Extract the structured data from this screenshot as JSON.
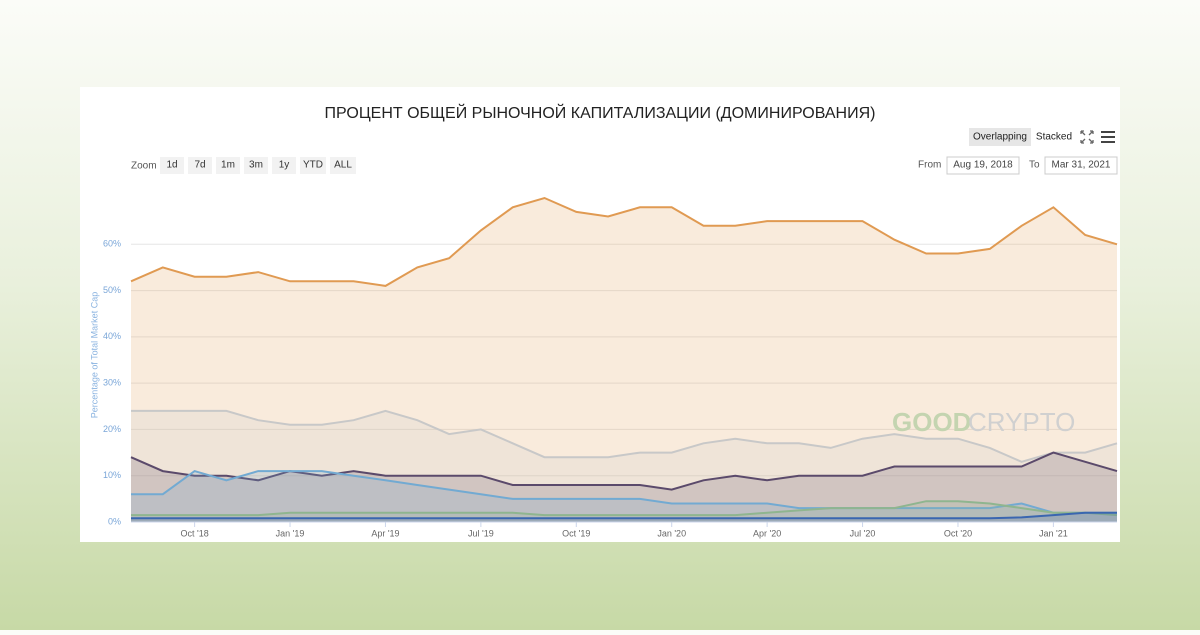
{
  "chart_data": {
    "type": "area",
    "title": "ПРОЦЕНТ ОБЩЕЙ РЫНОЧНОЙ КАПИТАЛИЗАЦИИ (ДОМИНИРОВАНИЯ)",
    "y_label": "Percentage of Total Market Cap",
    "x": [
      "2018-08",
      "2018-09",
      "2018-10",
      "2018-11",
      "2018-12",
      "2019-01",
      "2019-02",
      "2019-03",
      "2019-04",
      "2019-05",
      "2019-06",
      "2019-07",
      "2019-08",
      "2019-09",
      "2019-10",
      "2019-11",
      "2019-12",
      "2020-01",
      "2020-02",
      "2020-03",
      "2020-04",
      "2020-05",
      "2020-06",
      "2020-07",
      "2020-08",
      "2020-09",
      "2020-10",
      "2020-11",
      "2020-12",
      "2021-01",
      "2021-02",
      "2021-03"
    ],
    "xlim": [
      "2018-08",
      "2021-03"
    ],
    "xticks": [
      {
        "value": "2018-10",
        "label": "Oct '18"
      },
      {
        "value": "2019-01",
        "label": "Jan '19"
      },
      {
        "value": "2019-04",
        "label": "Apr '19"
      },
      {
        "value": "2019-07",
        "label": "Jul '19"
      },
      {
        "value": "2019-10",
        "label": "Oct '19"
      },
      {
        "value": "2020-01",
        "label": "Jan '20"
      },
      {
        "value": "2020-04",
        "label": "Apr '20"
      },
      {
        "value": "2020-07",
        "label": "Jul '20"
      },
      {
        "value": "2020-10",
        "label": "Oct '20"
      },
      {
        "value": "2021-01",
        "label": "Jan '21"
      }
    ],
    "ylim": [
      0,
      70
    ],
    "yticks": [
      {
        "value": 0,
        "label": "0%"
      },
      {
        "value": 10,
        "label": "10%"
      },
      {
        "value": 20,
        "label": "20%"
      },
      {
        "value": 30,
        "label": "30%"
      },
      {
        "value": 40,
        "label": "40%"
      },
      {
        "value": 50,
        "label": "50%"
      },
      {
        "value": 60,
        "label": "60%"
      }
    ],
    "grid": true,
    "series": [
      {
        "color": "#e09a52",
        "values": [
          52,
          55,
          53,
          53,
          54,
          52,
          52,
          52,
          51,
          55,
          57,
          63,
          68,
          70,
          67,
          66,
          68,
          68,
          64,
          64,
          65,
          65,
          65,
          65,
          61,
          58,
          58,
          59,
          64,
          68,
          62,
          60
        ]
      },
      {
        "color": "#c8c8c8",
        "values": [
          24,
          24,
          24,
          24,
          22,
          21,
          21,
          22,
          24,
          22,
          19,
          20,
          17,
          14,
          14,
          14,
          15,
          15,
          17,
          18,
          17,
          17,
          16,
          18,
          19,
          18,
          18,
          16,
          13,
          15,
          15,
          17
        ]
      },
      {
        "color": "#5b4a6b",
        "values": [
          14,
          11,
          10,
          10,
          9,
          11,
          10,
          11,
          10,
          10,
          10,
          10,
          8,
          8,
          8,
          8,
          8,
          7,
          9,
          10,
          9,
          10,
          10,
          10,
          12,
          12,
          12,
          12,
          12,
          15,
          13,
          11
        ]
      },
      {
        "color": "#72aad2",
        "values": [
          6,
          6,
          11,
          9,
          11,
          11,
          11,
          10,
          9,
          8,
          7,
          6,
          5,
          5,
          5,
          5,
          5,
          4,
          4,
          4,
          4,
          3,
          3,
          3,
          3,
          3,
          3,
          3,
          4,
          2,
          2,
          2
        ]
      },
      {
        "color": "#8fb58f",
        "values": [
          1.5,
          1.5,
          1.5,
          1.5,
          1.5,
          2,
          2,
          2,
          2,
          2,
          2,
          2,
          2,
          1.5,
          1.5,
          1.5,
          1.5,
          1.5,
          1.5,
          1.5,
          2,
          2.5,
          3,
          3,
          3,
          4.5,
          4.5,
          4,
          3,
          2,
          2,
          1.5
        ]
      },
      {
        "color": "#3a66b0",
        "values": [
          0.8,
          0.8,
          0.8,
          0.8,
          0.8,
          0.8,
          0.8,
          0.8,
          0.8,
          0.8,
          0.8,
          0.8,
          0.8,
          0.8,
          0.8,
          0.8,
          0.8,
          0.8,
          0.8,
          0.8,
          0.8,
          0.8,
          0.8,
          0.8,
          0.8,
          0.8,
          0.8,
          0.8,
          1,
          1.5,
          2,
          2
        ]
      }
    ]
  },
  "ui": {
    "zoom_label": "Zoom",
    "zoom_buttons": [
      "1d",
      "7d",
      "1m",
      "3m",
      "1y",
      "YTD",
      "ALL"
    ],
    "from_label": "From",
    "from_value": "Aug 19, 2018",
    "to_label": "To",
    "to_value": "Mar 31, 2021",
    "view_buttons": [
      "Overlapping",
      "Stacked"
    ],
    "watermark": {
      "left": "GOOD",
      "right": "CRYPTO"
    }
  }
}
